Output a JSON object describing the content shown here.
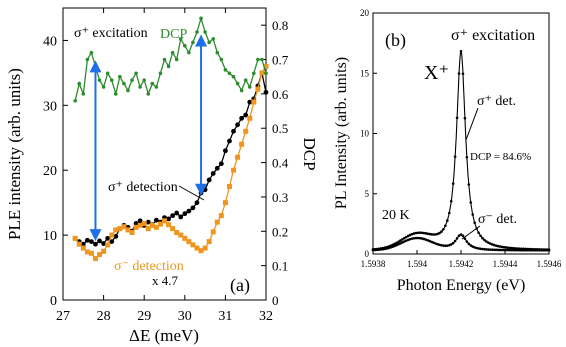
{
  "colors": {
    "black": "#000000",
    "orange": "#f0961e",
    "green": "#2e8b2e",
    "arrow": "#1f6fe8"
  },
  "chart_data": [
    {
      "type": "line",
      "panel_label": "(a)",
      "xlabel": "ΔE (meV)",
      "ylabel": "PLE intensity (arb. units)",
      "y2label": "DCP",
      "xlim": [
        27,
        32
      ],
      "ylim": [
        0,
        45
      ],
      "y2lim": [
        0,
        0.85
      ],
      "xticks": [
        "27",
        "28",
        "29",
        "30",
        "31",
        "32"
      ],
      "yticks": [
        "0",
        "10",
        "20",
        "30",
        "40"
      ],
      "y2ticks": [
        "0",
        "0.1",
        "0.2",
        "0.3",
        "0.4",
        "0.5",
        "0.6",
        "0.7",
        "0.8"
      ],
      "annotations": {
        "excitation": "σ⁺ excitation",
        "dcp": "DCP",
        "sigma_plus_det": "σ⁺ detection",
        "sigma_minus_det": "σ⁻ detection",
        "scale": "x 4.7"
      },
      "series": [
        {
          "name": "σ⁺ detection",
          "axis": "left",
          "color": "#000000",
          "x": [
            27.3,
            27.4,
            27.5,
            27.6,
            27.7,
            27.8,
            27.9,
            28.0,
            28.1,
            28.2,
            28.3,
            28.4,
            28.5,
            28.6,
            28.7,
            28.8,
            28.9,
            29.0,
            29.1,
            29.2,
            29.3,
            29.4,
            29.5,
            29.6,
            29.7,
            29.8,
            29.9,
            30.0,
            30.1,
            30.2,
            30.3,
            30.4,
            30.5,
            30.6,
            30.7,
            30.8,
            30.9,
            31.0,
            31.1,
            31.2,
            31.3,
            31.4,
            31.5,
            31.6,
            31.7,
            31.8,
            31.9,
            32.0
          ],
          "y": [
            9.5,
            9.0,
            8.6,
            9.2,
            9.0,
            8.6,
            9.1,
            8.7,
            9.5,
            9.0,
            9.8,
            11.0,
            11.5,
            11.2,
            10.6,
            11.8,
            12.2,
            11.5,
            12.0,
            11.6,
            12.3,
            12.0,
            12.7,
            12.5,
            13.0,
            13.4,
            12.8,
            13.3,
            13.7,
            14.2,
            15.0,
            16.5,
            17.0,
            18.5,
            19.5,
            20.3,
            21.0,
            23.0,
            24.5,
            26.0,
            27.0,
            28.0,
            28.5,
            30.5,
            31.0,
            33.0,
            35.0,
            32.0
          ]
        },
        {
          "name": "σ⁻ detection x 4.7",
          "axis": "left",
          "color": "#f0961e",
          "x": [
            27.3,
            27.4,
            27.5,
            27.6,
            27.7,
            27.8,
            27.9,
            28.0,
            28.1,
            28.2,
            28.3,
            28.4,
            28.5,
            28.6,
            28.7,
            28.8,
            28.9,
            29.0,
            29.1,
            29.2,
            29.3,
            29.4,
            29.5,
            29.6,
            29.7,
            29.8,
            29.9,
            30.0,
            30.1,
            30.2,
            30.3,
            30.4,
            30.5,
            30.6,
            30.7,
            30.8,
            30.9,
            31.0,
            31.1,
            31.2,
            31.3,
            31.4,
            31.5,
            31.6,
            31.7,
            31.8,
            31.9,
            32.0
          ],
          "y": [
            9.5,
            8.6,
            8.0,
            7.4,
            7.2,
            6.4,
            7.0,
            7.5,
            8.5,
            10.0,
            10.8,
            11.0,
            11.3,
            10.8,
            10.4,
            11.2,
            11.5,
            11.8,
            11.0,
            11.5,
            11.2,
            11.7,
            12.2,
            11.6,
            11.0,
            10.4,
            10.0,
            9.5,
            9.0,
            8.5,
            8.0,
            7.6,
            8.0,
            9.0,
            10.5,
            12.0,
            13.0,
            15.0,
            17.5,
            20.0,
            22.0,
            24.0,
            26.0,
            28.0,
            30.5,
            32.5,
            35.0,
            36.0
          ]
        },
        {
          "name": "DCP",
          "axis": "right",
          "color": "#2e8b2e",
          "x": [
            27.3,
            27.4,
            27.5,
            27.6,
            27.7,
            27.8,
            27.9,
            28.0,
            28.1,
            28.2,
            28.3,
            28.4,
            28.5,
            28.6,
            28.7,
            28.8,
            28.9,
            29.0,
            29.1,
            29.2,
            29.3,
            29.4,
            29.5,
            29.6,
            29.7,
            29.8,
            29.9,
            30.0,
            30.1,
            30.2,
            30.3,
            30.4,
            30.5,
            30.6,
            30.7,
            30.8,
            30.9,
            31.0,
            31.1,
            31.2,
            31.3,
            31.4,
            31.5,
            31.6,
            31.7,
            31.8,
            31.9,
            32.0
          ],
          "y": [
            0.58,
            0.63,
            0.6,
            0.7,
            0.72,
            0.68,
            0.64,
            0.62,
            0.66,
            0.64,
            0.6,
            0.65,
            0.63,
            0.61,
            0.64,
            0.66,
            0.62,
            0.64,
            0.6,
            0.63,
            0.62,
            0.66,
            0.7,
            0.68,
            0.72,
            0.7,
            0.76,
            0.74,
            0.72,
            0.75,
            0.78,
            0.82,
            0.78,
            0.75,
            0.76,
            0.72,
            0.7,
            0.67,
            0.66,
            0.65,
            0.63,
            0.61,
            0.64,
            0.62,
            0.66,
            0.7,
            0.7,
            0.66
          ]
        }
      ],
      "arrows_at_x": [
        27.8,
        30.4
      ]
    },
    {
      "type": "line",
      "panel_label": "(b)",
      "xlabel": "Photon Energy (eV)",
      "ylabel": "PL Intensity (arb. units)",
      "xlim": [
        1.5938,
        1.5946
      ],
      "ylim": [
        0,
        20
      ],
      "xticks": [
        "1.5938",
        "1.594",
        "1.5942",
        "1.5944",
        "1.5946"
      ],
      "yticks": [
        "0",
        "5",
        "10",
        "15",
        "20"
      ],
      "annotations": {
        "excitation": "σ⁺ excitation",
        "peak": "X⁺",
        "sigma_plus_det": "σ⁺ det.",
        "sigma_minus_det": "σ⁻ det.",
        "dcp_value": "DCP = 84.6%",
        "temperature": "20 K"
      },
      "series": [
        {
          "name": "σ⁺ det.",
          "peak_center_eV": 1.5942,
          "peak_height": 16.5,
          "peak_fwhm_eV": 5e-05,
          "side_peak_center_eV": 1.594,
          "side_peak_height": 1.2,
          "baseline": 0.3
        },
        {
          "name": "σ⁻ det.",
          "peak_center_eV": 1.5942,
          "peak_height": 1.3,
          "peak_fwhm_eV": 6e-05,
          "side_peak_center_eV": 1.594,
          "side_peak_height": 1.0,
          "baseline": 0.3
        }
      ]
    }
  ]
}
